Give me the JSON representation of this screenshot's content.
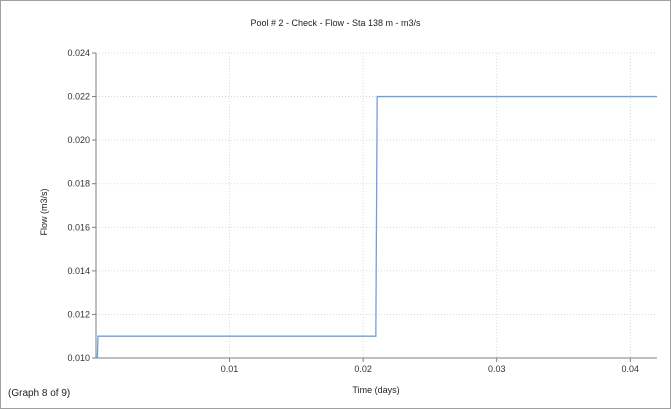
{
  "footer": {
    "graph_index": "(Graph 8 of 9)"
  },
  "chart_data": {
    "type": "line",
    "title": "Pool # 2 - Check - Flow - Sta 138 m - m3/s",
    "xlabel": "Time (days)",
    "ylabel": "Flow (m3/s)",
    "xlim": [
      0,
      0.042
    ],
    "ylim": [
      0.01,
      0.024
    ],
    "xticks": [
      0.01,
      0.02,
      0.03,
      0.04
    ],
    "xtick_labels": [
      "0.01",
      "0.02",
      "0.03",
      "0.04"
    ],
    "yticks": [
      0.01,
      0.012,
      0.014,
      0.016,
      0.018,
      0.02,
      0.022,
      0.024
    ],
    "ytick_labels": [
      "0.010",
      "0.012",
      "0.014",
      "0.016",
      "0.018",
      "0.020",
      "0.022",
      "0.024"
    ],
    "grid": true,
    "series": [
      {
        "color": "#6ca0e0",
        "x": [
          0.0,
          0.0001,
          0.00015,
          0.02095,
          0.02105,
          0.042
        ],
        "y": [
          0.01,
          0.01,
          0.011,
          0.011,
          0.022,
          0.022
        ]
      }
    ]
  }
}
